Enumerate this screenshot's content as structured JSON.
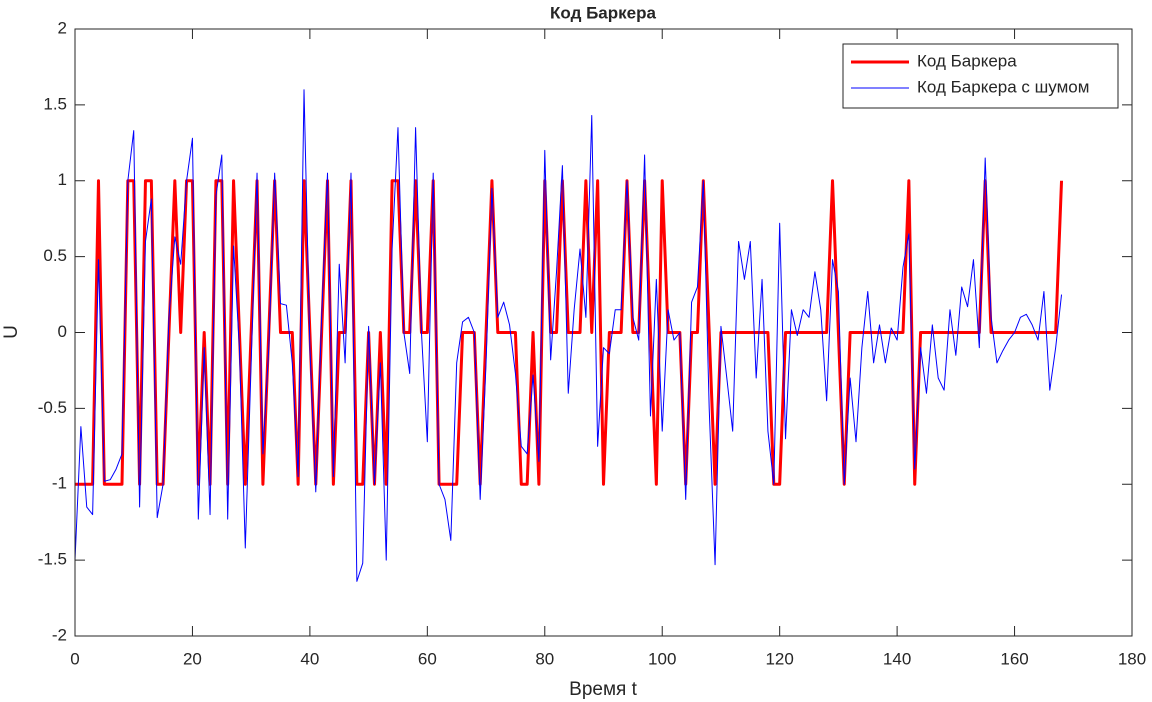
{
  "chart_data": {
    "type": "line",
    "title": "Код Баркера",
    "xlabel": "Время t",
    "ylabel": "U",
    "xlim": [
      0,
      180
    ],
    "xticks": [
      0,
      20,
      40,
      60,
      80,
      100,
      120,
      140,
      160,
      180
    ],
    "ylim": [
      -2,
      2
    ],
    "yticks": [
      -2,
      -1.5,
      -1,
      -0.5,
      0,
      0.5,
      1,
      1.5,
      2
    ],
    "legend": "upper right",
    "x": [
      0,
      1,
      2,
      3,
      4,
      5,
      6,
      7,
      8,
      9,
      10,
      11,
      12,
      13,
      14,
      15,
      16,
      17,
      18,
      19,
      20,
      21,
      22,
      23,
      24,
      25,
      26,
      27,
      28,
      29,
      30,
      31,
      32,
      33,
      34,
      35,
      36,
      37,
      38,
      39,
      40,
      41,
      42,
      43,
      44,
      45,
      46,
      47,
      48,
      49,
      50,
      51,
      52,
      53,
      54,
      55,
      56,
      57,
      58,
      59,
      60,
      61,
      62,
      63,
      64,
      65,
      66,
      67,
      68,
      69,
      70,
      71,
      72,
      73,
      74,
      75,
      76,
      77,
      78,
      79,
      80,
      81,
      82,
      83,
      84,
      85,
      86,
      87,
      88,
      89,
      90,
      91,
      92,
      93,
      94,
      95,
      96,
      97,
      98,
      99,
      100,
      101,
      102,
      103,
      104,
      105,
      106,
      107,
      108,
      109,
      110,
      111,
      112,
      113,
      114,
      115,
      116,
      117,
      118,
      119,
      120,
      121,
      122,
      123,
      124,
      125,
      126,
      127,
      128,
      129,
      130,
      131,
      132,
      133,
      134,
      135,
      136,
      137,
      138,
      139,
      140,
      141,
      142,
      143,
      144,
      145,
      146,
      147,
      148,
      149,
      150,
      151,
      152,
      153,
      154,
      155,
      156,
      157,
      158,
      159,
      160,
      161,
      162,
      163,
      164,
      165,
      166,
      167,
      168
    ],
    "series": [
      {
        "name": "Код Баркера",
        "color": "#ff0000",
        "width": 3,
        "values": [
          -1,
          -1,
          -1,
          -1,
          1,
          -1,
          -1,
          -1,
          -1,
          1,
          1,
          -1,
          1,
          1,
          -1,
          -1,
          0,
          1,
          0,
          1,
          1,
          -1,
          0,
          -1,
          1,
          1,
          -1,
          1,
          0,
          -1,
          0,
          1,
          -1,
          0,
          1,
          0,
          0,
          0,
          -1,
          1,
          0,
          -1,
          0,
          1,
          -1,
          0,
          0,
          1,
          -1,
          -1,
          0,
          -1,
          0,
          -1,
          1,
          1,
          0,
          0,
          1,
          0,
          0,
          1,
          -1,
          -1,
          -1,
          -1,
          0,
          0,
          0,
          -1,
          0,
          1,
          0,
          0,
          0,
          0,
          -1,
          -1,
          0,
          -1,
          1,
          0,
          0,
          1,
          0,
          0,
          0,
          1,
          0,
          1,
          -1,
          0,
          0,
          0,
          1,
          0,
          0,
          1,
          0,
          -1,
          1,
          0,
          0,
          0,
          -1,
          0,
          0,
          1,
          0,
          -1,
          0,
          0,
          0,
          0,
          0,
          0,
          0,
          0,
          0,
          -1,
          -1,
          0,
          0,
          0,
          0,
          0,
          0,
          0,
          0,
          1,
          0,
          -1,
          0,
          0,
          0,
          0,
          0,
          0,
          0,
          0,
          0,
          0,
          1,
          -1,
          0,
          0,
          0,
          0,
          0,
          0,
          0,
          0,
          0,
          0,
          0,
          1,
          0,
          0,
          0,
          0,
          0,
          0,
          0,
          0,
          0,
          0,
          0,
          0,
          1
        ]
      },
      {
        "name": "Код Баркера с шумом",
        "color": "#0000ff",
        "width": 1,
        "values": [
          -1.5,
          -0.62,
          -1.15,
          -1.2,
          0.48,
          -0.98,
          -0.97,
          -0.9,
          -0.8,
          1,
          1.33,
          -1.15,
          0.6,
          0.88,
          -1.22,
          -1,
          0.1,
          0.63,
          0.45,
          1,
          1.28,
          -1.23,
          -0.1,
          -1.2,
          0.9,
          1.17,
          -1.23,
          0.57,
          -0.1,
          -1.42,
          -0.2,
          1.05,
          -0.8,
          -0.1,
          1.05,
          0.19,
          0.18,
          -0.2,
          -0.95,
          1.6,
          -0.1,
          -1.05,
          0.1,
          1.05,
          -0.95,
          0.45,
          -0.2,
          1.05,
          -1.64,
          -1.52,
          0.04,
          -1,
          -0.2,
          -1.5,
          0.55,
          1.35,
          0,
          -0.27,
          1.35,
          0,
          -0.72,
          1.05,
          -1,
          -1.1,
          -1.37,
          -0.2,
          0.07,
          0.1,
          0,
          -1.1,
          -0.2,
          0.95,
          0.1,
          0.2,
          0.05,
          -0.27,
          -0.75,
          -0.8,
          -0.28,
          -0.85,
          1.2,
          -0.18,
          0.4,
          1.1,
          -0.4,
          0.15,
          0.55,
          0.1,
          1.43,
          -0.75,
          -0.1,
          -0.14,
          0.15,
          0.15,
          1,
          0.1,
          -0.05,
          1.17,
          -0.55,
          0.35,
          -0.65,
          0.15,
          -0.05,
          0,
          -1.1,
          0.2,
          0.3,
          1,
          -0.5,
          -1.53,
          0.04,
          -0.3,
          -0.65,
          0.6,
          0.35,
          0.6,
          -0.3,
          0.35,
          -0.65,
          -1,
          0.72,
          -0.7,
          0.15,
          -0.02,
          0.15,
          0.1,
          0.4,
          0.15,
          -0.45,
          0.48,
          0.27,
          -1,
          -0.3,
          -0.72,
          -0.1,
          0.27,
          -0.2,
          0.05,
          -0.2,
          0.03,
          -0.05,
          0.43,
          0.65,
          -0.9,
          -0.1,
          -0.4,
          0.05,
          -0.3,
          -0.38,
          0.15,
          -0.15,
          0.3,
          0.17,
          0.48,
          -0.1,
          1.15,
          0.1,
          -0.2,
          -0.12,
          -0.05,
          0,
          0.1,
          0.12,
          0.05,
          -0.05,
          0.27,
          -0.38,
          -0.1,
          0.25
        ]
      }
    ]
  }
}
